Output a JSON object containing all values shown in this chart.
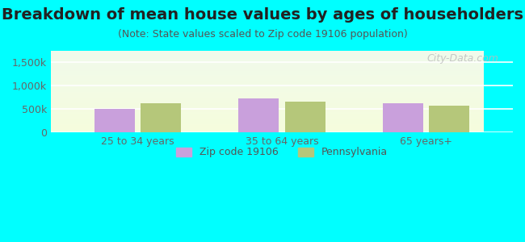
{
  "title": "Breakdown of mean house values by ages of householders",
  "subtitle": "(Note: State values scaled to Zip code 19106 population)",
  "categories": [
    "25 to 34 years",
    "35 to 64 years",
    "65 years+"
  ],
  "zip_values": [
    500000,
    730000,
    620000
  ],
  "state_values": [
    620000,
    660000,
    570000
  ],
  "zip_color": "#c9a0dc",
  "state_color": "#b5c77a",
  "background_outer": "#00ffff",
  "ylim": [
    0,
    1750000
  ],
  "yticks": [
    0,
    500000,
    1000000,
    1500000
  ],
  "ytick_labels": [
    "0",
    "500k",
    "1,000k",
    "1,500k"
  ],
  "legend_zip": "Zip code 19106",
  "legend_state": "Pennsylvania",
  "watermark": "City-Data.com",
  "title_fontsize": 14,
  "subtitle_fontsize": 9,
  "tick_fontsize": 9,
  "legend_fontsize": 9
}
